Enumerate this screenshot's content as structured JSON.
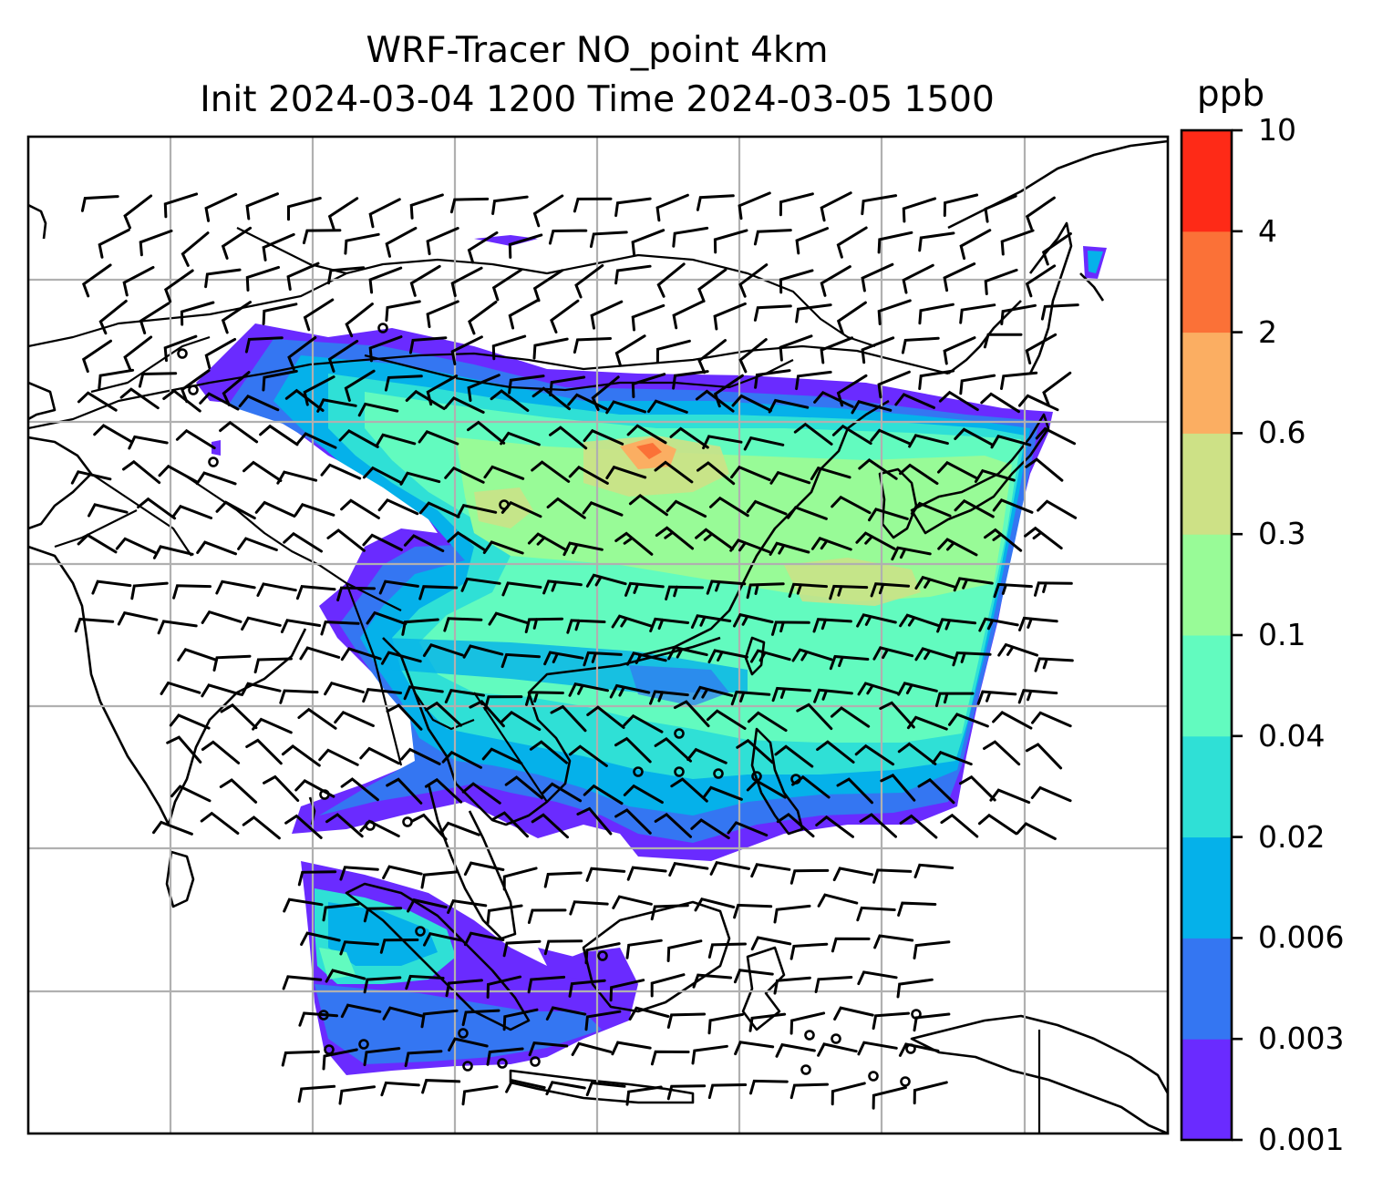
{
  "title": {
    "line1": "WRF-Tracer NO_point 4km",
    "line2": "Init 2024-03-04 1200 Time 2024-03-05 1500"
  },
  "colorbar": {
    "unit": "ppb",
    "levels": [
      "0.001",
      "0.003",
      "0.006",
      "0.02",
      "0.04",
      "0.1",
      "0.3",
      "0.6",
      "2",
      "4",
      "10"
    ],
    "colors": [
      "#6a2bff",
      "#3476f2",
      "#05b1ea",
      "#2fe0d6",
      "#62fbbf",
      "#98fb97",
      "#cde186",
      "#fbae62",
      "#fb7137",
      "#fe2a17"
    ]
  },
  "map": {
    "gridlines": true,
    "coastline_color": "#000000",
    "gridline_color": "#b0b0b0",
    "features": [
      "coastlines",
      "country-borders",
      "tracer-concentration-field",
      "wind-barbs"
    ]
  }
}
